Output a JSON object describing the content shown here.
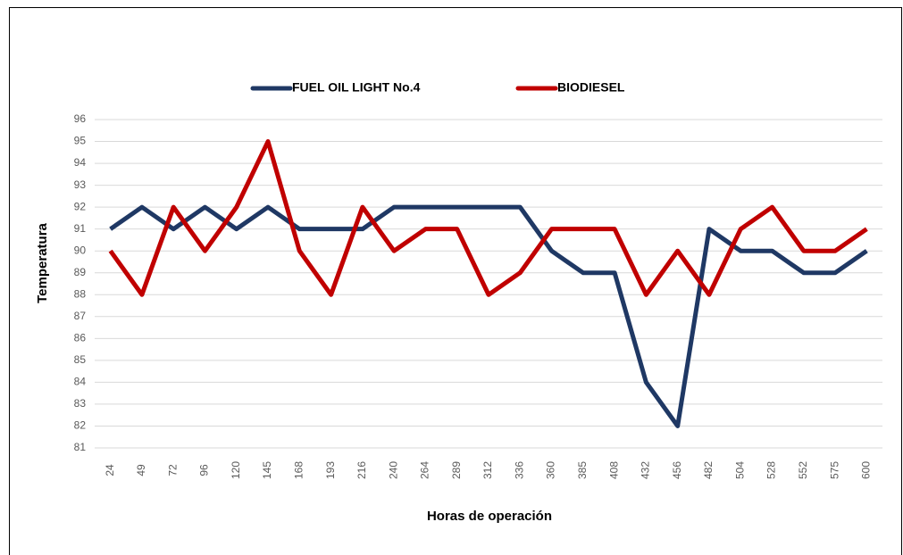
{
  "chart_data": {
    "type": "line",
    "x_label": "Horas de operación",
    "y_label": "Temperatura",
    "categories": [
      "24",
      "49",
      "72",
      "96",
      "120",
      "145",
      "168",
      "193",
      "216",
      "240",
      "264",
      "289",
      "312",
      "336",
      "360",
      "385",
      "408",
      "432",
      "456",
      "482",
      "504",
      "528",
      "552",
      "575",
      "600"
    ],
    "series": [
      {
        "name": "FUEL OIL LIGHT No.4",
        "color": "#1f3864",
        "values": [
          91,
          92,
          91,
          92,
          91,
          92,
          91,
          91,
          91,
          92,
          92,
          92,
          92,
          92,
          90,
          89,
          89,
          84,
          82,
          91,
          90,
          90,
          89,
          89,
          90
        ]
      },
      {
        "name": "BIODIESEL",
        "color": "#c00000",
        "values": [
          90,
          88,
          92,
          90,
          92,
          95,
          90,
          88,
          92,
          90,
          91,
          91,
          88,
          89,
          91,
          91,
          91,
          88,
          90,
          88,
          91,
          92,
          90,
          90,
          91
        ]
      }
    ],
    "ylim": [
      81,
      96
    ],
    "yticks": [
      81,
      82,
      83,
      84,
      85,
      86,
      87,
      88,
      89,
      90,
      91,
      92,
      93,
      94,
      95,
      96
    ],
    "grid": true,
    "legend": "top"
  }
}
